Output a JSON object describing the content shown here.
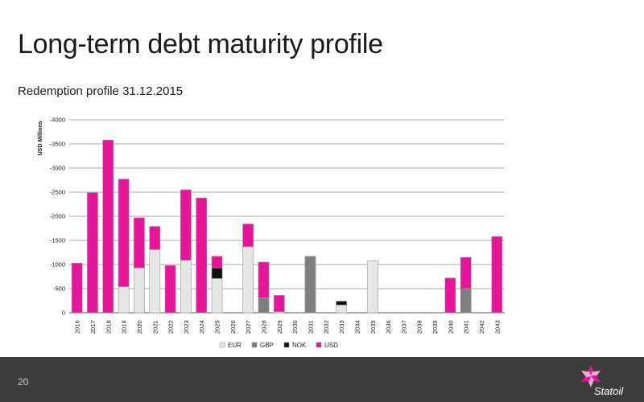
{
  "slide": {
    "title": "Long-term debt maturity profile",
    "subtitle": "Redemption profile 31.12.2015",
    "page_number": "20",
    "brand": "Statoil"
  },
  "chart_data": {
    "type": "bar",
    "stacked": true,
    "ylabel": "USD Millions",
    "ylim": [
      0,
      -4000
    ],
    "yticks": [
      "-4000",
      "-3500",
      "-3000",
      "-2500",
      "-2000",
      "-1500",
      "-1000",
      "-500",
      "0"
    ],
    "grid": true,
    "legend_position": "bottom",
    "categories": [
      "2016",
      "2017",
      "2018",
      "2019",
      "2020",
      "2021",
      "2022",
      "2023",
      "2024",
      "2025",
      "2026",
      "2027",
      "2028",
      "2029",
      "2030",
      "2031",
      "2032",
      "2033",
      "2034",
      "2035",
      "2036",
      "2037",
      "2038",
      "2039",
      "2040",
      "2041",
      "2042",
      "2043"
    ],
    "series": [
      {
        "name": "EUR",
        "color": "#e6e6e6",
        "values": [
          0,
          0,
          0,
          -540,
          -930,
          -1310,
          0,
          -1090,
          0,
          -710,
          0,
          -1370,
          0,
          -20,
          0,
          0,
          0,
          -160,
          0,
          -1080,
          0,
          0,
          0,
          0,
          0,
          0,
          0,
          0
        ]
      },
      {
        "name": "GBP",
        "color": "#7f7f7f",
        "values": [
          0,
          0,
          0,
          0,
          0,
          0,
          0,
          0,
          0,
          0,
          0,
          0,
          -310,
          0,
          0,
          -1170,
          0,
          0,
          0,
          0,
          0,
          0,
          0,
          0,
          0,
          -500,
          0,
          0
        ]
      },
      {
        "name": "NOK",
        "color": "#111111",
        "values": [
          0,
          0,
          0,
          0,
          0,
          0,
          0,
          0,
          0,
          -220,
          0,
          0,
          0,
          0,
          0,
          0,
          0,
          -80,
          0,
          0,
          0,
          0,
          0,
          0,
          0,
          0,
          0,
          0
        ]
      },
      {
        "name": "USD",
        "color": "#e8159b",
        "values": [
          -1030,
          -2490,
          -3580,
          -2230,
          -1040,
          -480,
          -980,
          -1460,
          -2380,
          -240,
          0,
          -470,
          -740,
          -340,
          0,
          0,
          0,
          0,
          0,
          0,
          0,
          0,
          0,
          0,
          -720,
          -650,
          0,
          -1580
        ]
      }
    ]
  }
}
